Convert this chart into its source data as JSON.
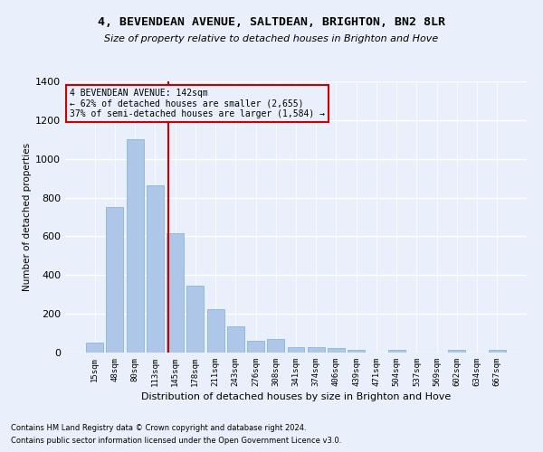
{
  "title1": "4, BEVENDEAN AVENUE, SALTDEAN, BRIGHTON, BN2 8LR",
  "title2": "Size of property relative to detached houses in Brighton and Hove",
  "xlabel": "Distribution of detached houses by size in Brighton and Hove",
  "ylabel": "Number of detached properties",
  "footnote1": "Contains HM Land Registry data © Crown copyright and database right 2024.",
  "footnote2": "Contains public sector information licensed under the Open Government Licence v3.0.",
  "bar_labels": [
    "15sqm",
    "48sqm",
    "80sqm",
    "113sqm",
    "145sqm",
    "178sqm",
    "211sqm",
    "243sqm",
    "276sqm",
    "308sqm",
    "341sqm",
    "374sqm",
    "406sqm",
    "439sqm",
    "471sqm",
    "504sqm",
    "537sqm",
    "569sqm",
    "602sqm",
    "634sqm",
    "667sqm"
  ],
  "bar_values": [
    50,
    750,
    1100,
    865,
    615,
    345,
    225,
    135,
    60,
    70,
    30,
    30,
    22,
    15,
    0,
    12,
    0,
    0,
    12,
    0,
    12
  ],
  "bar_color": "#aec6e8",
  "bar_edge_color": "#7aafd4",
  "bg_color": "#eaf0fb",
  "grid_color": "#ffffff",
  "vline_color": "#cc0000",
  "annotation_text": "4 BEVENDEAN AVENUE: 142sqm\n← 62% of detached houses are smaller (2,655)\n37% of semi-detached houses are larger (1,584) →",
  "annotation_box_color": "#cc0000",
  "ylim": [
    0,
    1400
  ],
  "yticks": [
    0,
    200,
    400,
    600,
    800,
    1000,
    1200,
    1400
  ]
}
